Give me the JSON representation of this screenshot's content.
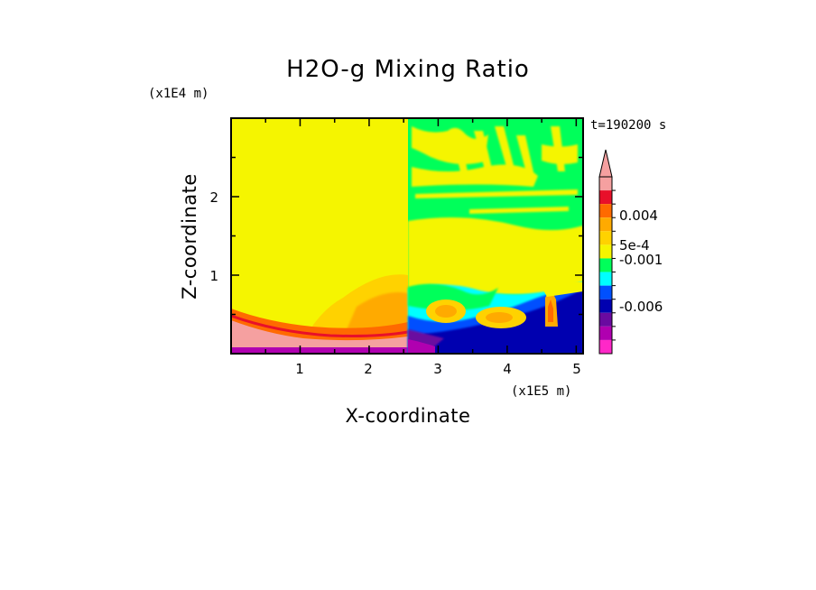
{
  "chart_data": {
    "type": "heatmap",
    "title": "H2O-g Mixing Ratio",
    "xlabel": "X-coordinate",
    "ylabel": "Z-coordinate",
    "x_scale_label": "(x1E5 m)",
    "y_scale_label": "(x1E4 m)",
    "time_label": "t=190200 s",
    "x_ticks": [
      "1",
      "2",
      "3",
      "4",
      "5"
    ],
    "x_tick_values": [
      1,
      2,
      3,
      4,
      5
    ],
    "y_ticks": [
      "1",
      "2"
    ],
    "y_tick_values": [
      1,
      2
    ],
    "xlim": [
      0,
      5.1
    ],
    "ylim": [
      0,
      3.0
    ],
    "colorbar": {
      "labels": [
        "0.004",
        "5e-4",
        "-0.001",
        "-0.006"
      ],
      "label_values": [
        0.004,
        0.0005,
        -0.001,
        -0.006
      ],
      "colors": [
        "#f5a0a0",
        "#e8102a",
        "#ff6a00",
        "#ffaa00",
        "#ffd200",
        "#f5f500",
        "#00ff5a",
        "#00ffff",
        "#0050ff",
        "#0000b0",
        "#6a0aa0",
        "#b000b0",
        "#ff28c8"
      ],
      "extend": "max"
    },
    "regions": [
      {
        "name": "background-left",
        "color": "#f5f500"
      },
      {
        "name": "background-right",
        "color": "#00ff5a"
      },
      {
        "name": "moist-layer",
        "color": "#f5f500"
      },
      {
        "name": "boundary-layer",
        "color": "#ffaa00"
      },
      {
        "name": "surface-dry",
        "color": "#f5a0a0"
      },
      {
        "name": "deep-negative",
        "color": "#0050ff"
      }
    ]
  }
}
